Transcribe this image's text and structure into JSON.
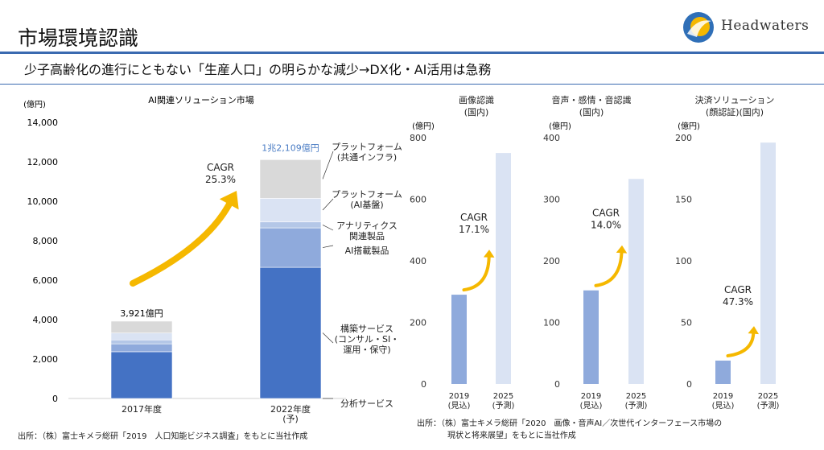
{
  "header": {
    "title": "市場環境認識",
    "logo_text": "Headwaters",
    "subtitle": "少子高齢化の進行にともない「生産人口」の明らかな減少→DX化・AI活用は急務"
  },
  "colors": {
    "accent": "#3a6ab0",
    "arrow": "#f5b800",
    "seg_analysis": "#4472c4",
    "seg_build": "#4472c4",
    "seg_ai_products": "#8faadc",
    "seg_analytics": "#b4c7e7",
    "seg_platform_ai": "#dae3f3",
    "seg_platform_common": "#d9d9d9",
    "bar_2019": "#8faadc",
    "bar_2025": "#dae3f3"
  },
  "chart_data": [
    {
      "id": "ai-market",
      "type": "bar",
      "stacked": true,
      "title": "AI関連ソリューション市場",
      "unit_label": "(億円)",
      "categories": [
        "2017年度",
        "2022年度\n(予)"
      ],
      "ylim": [
        0,
        14000
      ],
      "yticks": [
        0,
        2000,
        4000,
        6000,
        8000,
        10000,
        12000,
        14000
      ],
      "ytick_labels": [
        "0",
        "2,000",
        "4,000",
        "6,000",
        "8,000",
        "10,000",
        "12,000",
        "14,000"
      ],
      "series": [
        {
          "name": "分析サービス",
          "values": [
            0,
            0
          ]
        },
        {
          "name": "構築サービス\n(コンサル・SI・\n運用・保守)",
          "values": [
            2370,
            6650
          ]
        },
        {
          "name": "AI搭載製品",
          "values": [
            400,
            2000
          ]
        },
        {
          "name": "アナリティクス\n関連製品",
          "values": [
            200,
            300
          ]
        },
        {
          "name": "プラットフォーム\n(AI基盤)",
          "values": [
            350,
            1200
          ]
        },
        {
          "name": "プラットフォーム\n(共通インフラ)",
          "values": [
            601,
            1959
          ]
        }
      ],
      "totals_labels": [
        "3,921億円",
        "1兆2,109億円"
      ],
      "annotation": "CAGR\n25.3%"
    },
    {
      "id": "image-recognition",
      "type": "bar",
      "title": "画像認識\n(国内)",
      "unit_label": "(億円)",
      "categories": [
        "2019\n(見込)",
        "2025\n(予測)"
      ],
      "values": [
        290,
        750
      ],
      "ylim": [
        0,
        800
      ],
      "yticks": [
        0,
        200,
        400,
        600,
        800
      ],
      "annotation": "CAGR\n17.1%"
    },
    {
      "id": "voice-emotion",
      "type": "bar",
      "title": "音声・感情・音認識\n(国内)",
      "unit_label": "(億円)",
      "categories": [
        "2019\n(見込)",
        "2025\n(予測)"
      ],
      "values": [
        152,
        333
      ],
      "ylim": [
        0,
        400
      ],
      "yticks": [
        0,
        100,
        200,
        300,
        400
      ],
      "annotation": "CAGR\n14.0%"
    },
    {
      "id": "payment-face",
      "type": "bar",
      "title": "決済ソリューション\n(顔認証)(国内)",
      "unit_label": "(億円)",
      "categories": [
        "2019\n(見込)",
        "2025\n(予測)"
      ],
      "values": [
        19,
        196
      ],
      "ylim": [
        0,
        200
      ],
      "yticks": [
        0,
        50,
        100,
        150,
        200
      ],
      "annotation": "CAGR\n47.3%"
    }
  ],
  "sources": {
    "left": "出所：（株）富士キメラ総研「2019　人口知能ビジネス調査」をもとに当社作成",
    "right_line1": "出所：（株）富士キメラ総研「2020　画像・音声AI／次世代インターフェース市場の",
    "right_line2": "現状と将来展望」をもとに当社作成"
  }
}
